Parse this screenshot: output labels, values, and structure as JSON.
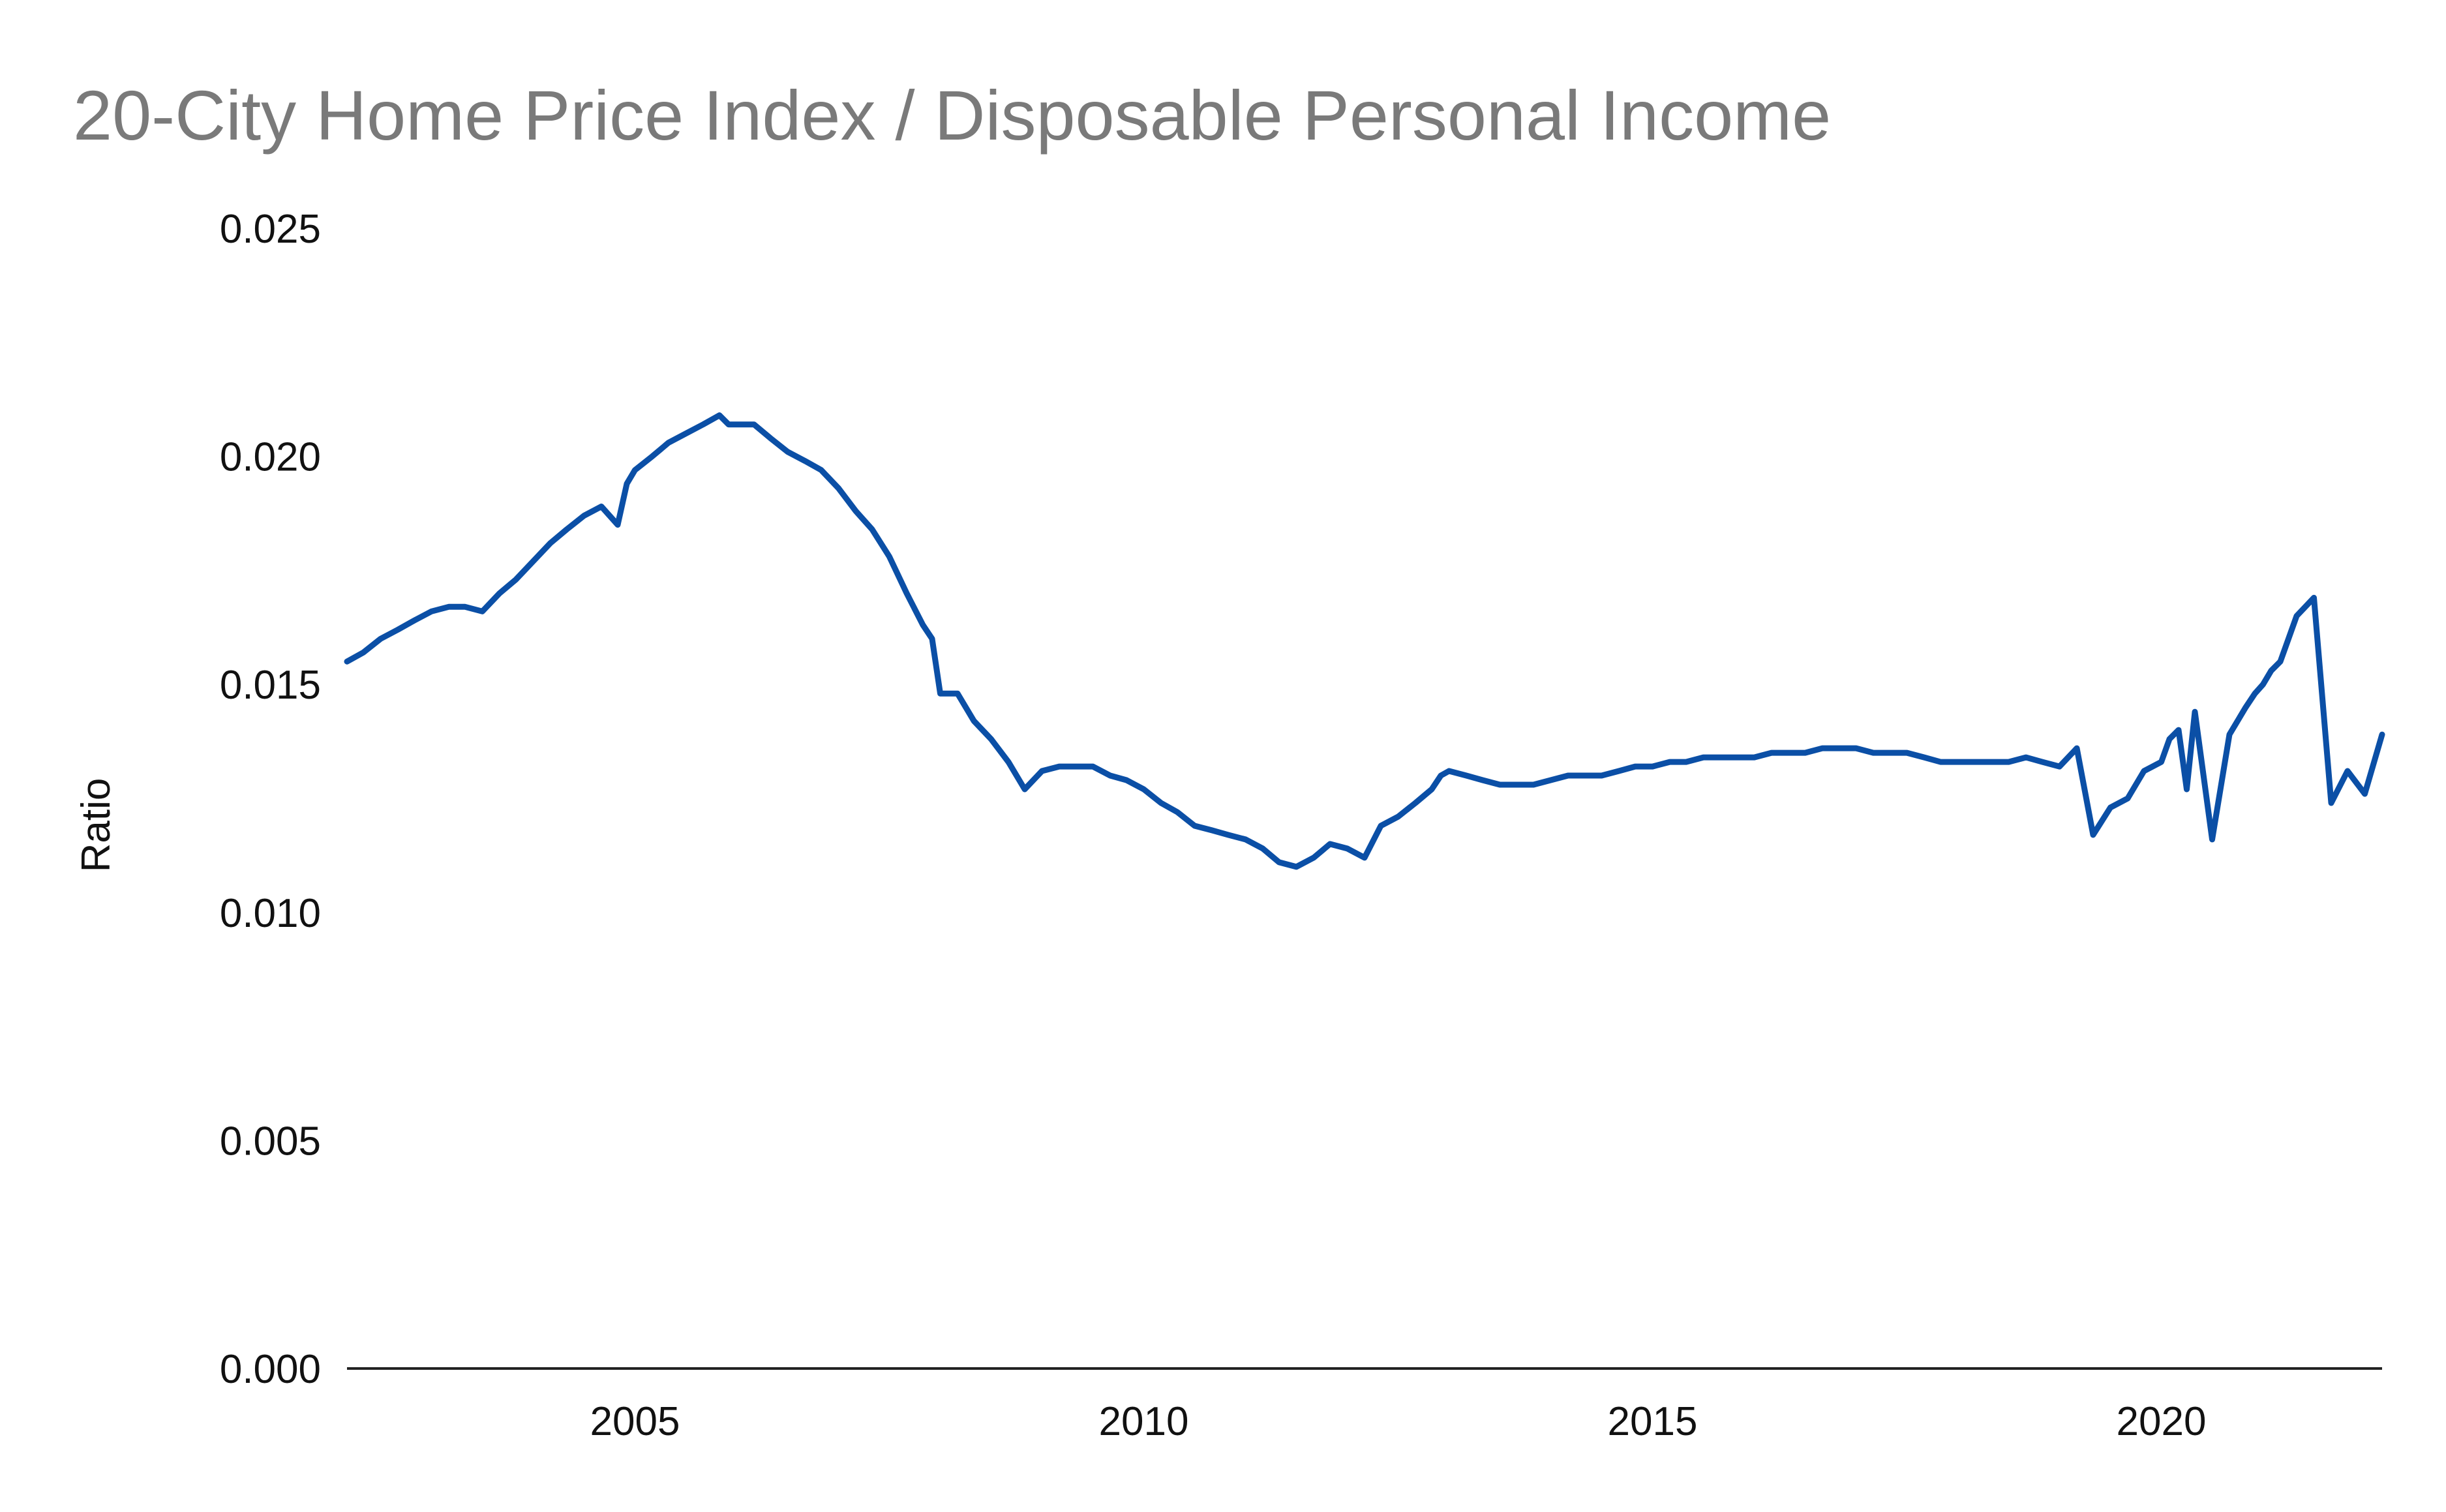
{
  "chart_data": {
    "type": "line",
    "title": "20-City Home Price Index / Disposable Personal Income",
    "xlabel": "",
    "ylabel": "Ratio",
    "xlim": [
      2002.17,
      2022.17
    ],
    "ylim": [
      0,
      0.025
    ],
    "x_ticks": [
      {
        "value": 2005,
        "label": "2005"
      },
      {
        "value": 2010,
        "label": "2010"
      },
      {
        "value": 2015,
        "label": "2015"
      },
      {
        "value": 2020,
        "label": "2020"
      }
    ],
    "y_ticks": [
      {
        "value": 0.0,
        "label": "0.000"
      },
      {
        "value": 0.005,
        "label": "0.005"
      },
      {
        "value": 0.01,
        "label": "0.010"
      },
      {
        "value": 0.015,
        "label": "0.015"
      },
      {
        "value": 0.02,
        "label": "0.020"
      },
      {
        "value": 0.025,
        "label": "0.025"
      }
    ],
    "grid": false,
    "line_color": "#0b4fa6",
    "x": [
      2002.17,
      2002.33,
      2002.5,
      2002.67,
      2002.83,
      2003.0,
      2003.17,
      2003.33,
      2003.5,
      2003.67,
      2003.83,
      2004.0,
      2004.17,
      2004.33,
      2004.5,
      2004.67,
      2004.83,
      2004.92,
      2005.0,
      2005.17,
      2005.33,
      2005.5,
      2005.67,
      2005.83,
      2005.92,
      2006.0,
      2006.17,
      2006.33,
      2006.5,
      2006.67,
      2006.83,
      2007.0,
      2007.17,
      2007.33,
      2007.5,
      2007.67,
      2007.83,
      2007.92,
      2008.0,
      2008.17,
      2008.33,
      2008.5,
      2008.67,
      2008.83,
      2009.0,
      2009.17,
      2009.33,
      2009.5,
      2009.67,
      2009.83,
      2010.0,
      2010.17,
      2010.33,
      2010.5,
      2010.67,
      2010.83,
      2011.0,
      2011.17,
      2011.33,
      2011.5,
      2011.67,
      2011.83,
      2012.0,
      2012.17,
      2012.33,
      2012.5,
      2012.67,
      2012.83,
      2012.92,
      2013.0,
      2013.17,
      2013.33,
      2013.5,
      2013.67,
      2013.83,
      2014.0,
      2014.17,
      2014.33,
      2014.5,
      2014.67,
      2014.83,
      2015.0,
      2015.17,
      2015.33,
      2015.5,
      2015.67,
      2015.83,
      2016.0,
      2016.17,
      2016.33,
      2016.5,
      2016.67,
      2016.83,
      2017.0,
      2017.17,
      2017.33,
      2017.5,
      2017.67,
      2017.83,
      2018.0,
      2018.17,
      2018.33,
      2018.5,
      2018.67,
      2018.83,
      2019.0,
      2019.17,
      2019.33,
      2019.5,
      2019.67,
      2019.83,
      2020.0,
      2020.08,
      2020.17,
      2020.25,
      2020.33,
      2020.5,
      2020.67,
      2020.83,
      2020.92,
      2021.0,
      2021.08,
      2021.17,
      2021.25,
      2021.33,
      2021.5,
      2021.67,
      2021.83,
      2022.0,
      2022.17
    ],
    "values": [
      0.0155,
      0.0157,
      0.016,
      0.0162,
      0.0164,
      0.0166,
      0.0167,
      0.0167,
      0.0166,
      0.017,
      0.0173,
      0.0177,
      0.0181,
      0.0184,
      0.0187,
      0.0189,
      0.0185,
      0.0194,
      0.0197,
      0.02,
      0.0203,
      0.0205,
      0.0207,
      0.0209,
      0.0207,
      0.0207,
      0.0207,
      0.0204,
      0.0201,
      0.0199,
      0.0197,
      0.0193,
      0.0188,
      0.0184,
      0.0178,
      0.017,
      0.0163,
      0.016,
      0.0148,
      0.0148,
      0.0142,
      0.0138,
      0.0133,
      0.0127,
      0.0131,
      0.0132,
      0.0132,
      0.0132,
      0.013,
      0.0129,
      0.0127,
      0.0124,
      0.0122,
      0.0119,
      0.0118,
      0.0117,
      0.0116,
      0.0114,
      0.0111,
      0.011,
      0.0112,
      0.0115,
      0.0114,
      0.0112,
      0.0119,
      0.0121,
      0.0124,
      0.0127,
      0.013,
      0.0131,
      0.013,
      0.0129,
      0.0128,
      0.0128,
      0.0128,
      0.0129,
      0.013,
      0.013,
      0.013,
      0.0131,
      0.0132,
      0.0132,
      0.0133,
      0.0133,
      0.0134,
      0.0134,
      0.0134,
      0.0134,
      0.0135,
      0.0135,
      0.0135,
      0.0136,
      0.0136,
      0.0136,
      0.0135,
      0.0135,
      0.0135,
      0.0134,
      0.0133,
      0.0133,
      0.0133,
      0.0133,
      0.0133,
      0.0134,
      0.0133,
      0.0132,
      0.0136,
      0.0117,
      0.0123,
      0.0125,
      0.0131,
      0.0133,
      0.0138,
      0.014,
      0.0127,
      0.0144,
      0.0116,
      0.0139,
      0.0145,
      0.0148,
      0.015,
      0.0153,
      0.0155,
      0.016,
      0.0165,
      0.0169,
      0.0124,
      0.0131,
      0.0126,
      0.0139
    ]
  }
}
